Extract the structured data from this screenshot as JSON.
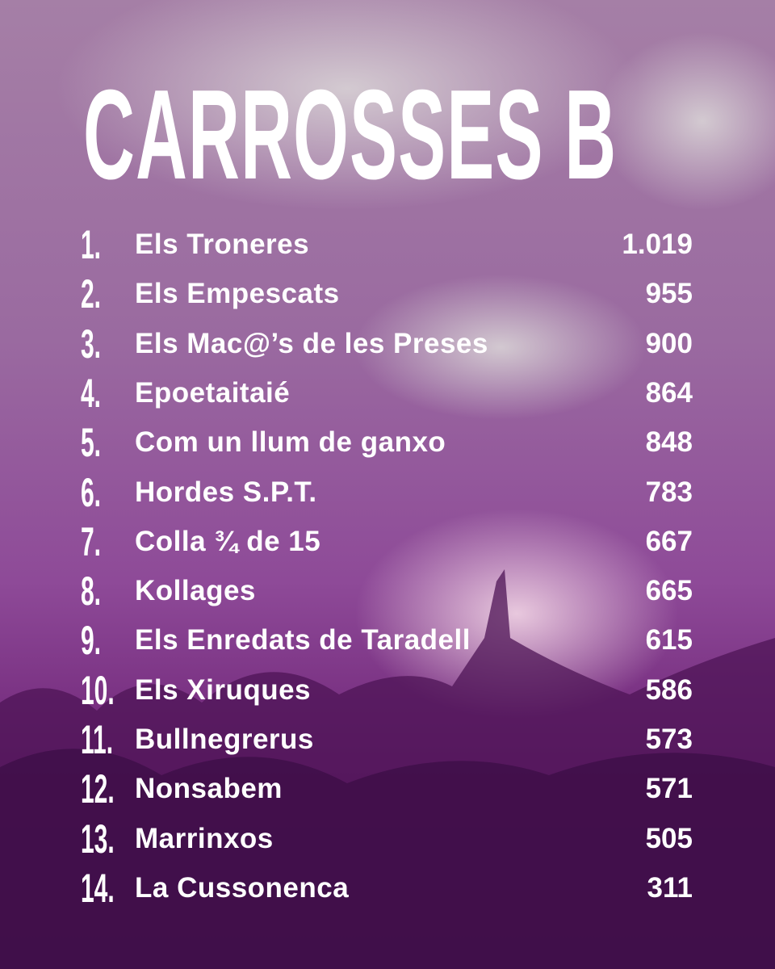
{
  "title": "CARROSSES B",
  "rows": [
    {
      "rank": "1.",
      "name": "Els Troneres",
      "score": "1.019"
    },
    {
      "rank": "2.",
      "name": "Els Empescats",
      "score": "955"
    },
    {
      "rank": "3.",
      "name": "Els Mac@’s de les Preses",
      "score": "900"
    },
    {
      "rank": "4.",
      "name": "Epoetaitaié",
      "score": "864"
    },
    {
      "rank": "5.",
      "name": "Com un llum de ganxo",
      "score": "848"
    },
    {
      "rank": "6.",
      "name": "Hordes S.P.T.",
      "score": "783"
    },
    {
      "rank": "7.",
      "name": "Colla ¾ de 15",
      "score": "667"
    },
    {
      "rank": "8.",
      "name": "Kollages",
      "score": "665"
    },
    {
      "rank": "9.",
      "name": "Els Enredats de Taradell",
      "score": "615"
    },
    {
      "rank": "10.",
      "name": "Els Xiruques",
      "score": "586"
    },
    {
      "rank": "11.",
      "name": "Bullnegrerus",
      "score": "573"
    },
    {
      "rank": "12.",
      "name": "Nonsabem",
      "score": "571"
    },
    {
      "rank": "13.",
      "name": "Marrinxos",
      "score": "505"
    },
    {
      "rank": "14.",
      "name": "La Cussonenca",
      "score": "311"
    }
  ]
}
